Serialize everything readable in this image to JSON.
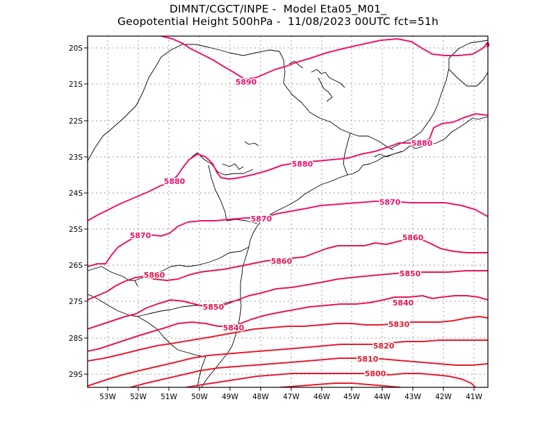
{
  "title": {
    "line1": "DIMNT/CGCT/INPE -  Model Eta05_M01_",
    "line2": "Geopotential Height 500hPa -  11/08/2023 00UTC fct=51h"
  },
  "axes": {
    "lon_labels": [
      "53W",
      "52W",
      "51W",
      "50W",
      "49W",
      "48W",
      "47W",
      "46W",
      "45W",
      "44W",
      "43W",
      "42W",
      "41W"
    ],
    "lat_labels": [
      "20S",
      "21S",
      "22S",
      "23S",
      "24S",
      "25S",
      "26S",
      "27S",
      "28S",
      "29S"
    ]
  },
  "contour_labels": [
    "5890",
    "5880",
    "5880",
    "5880",
    "5870",
    "5870",
    "5870",
    "5860",
    "5860",
    "5860",
    "5850",
    "5850",
    "5840",
    "5840",
    "5830",
    "5820",
    "5810",
    "5800"
  ],
  "colors": {
    "5890": "#f0136d",
    "5880": "#f0136d",
    "5870": "#f0136d",
    "5860": "#e8164e",
    "5850": "#e8164e",
    "5840": "#e8164e",
    "5830": "#e61a2e",
    "5820": "#e61a2e",
    "5810": "#e61a2e",
    "5800": "#e61a2e",
    "coast": "#000000",
    "grid": "#9a9a9a"
  }
}
